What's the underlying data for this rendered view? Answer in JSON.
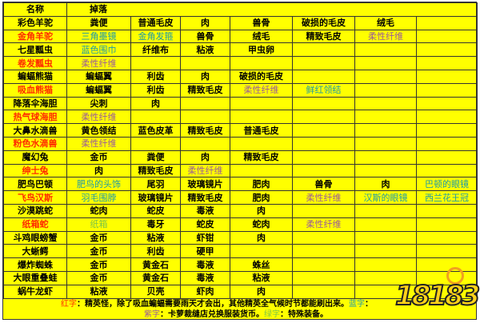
{
  "colors": {
    "background": "#ffff00",
    "red": "#ff2a00",
    "blue": "#1f9aa6",
    "purple": "#9a5a9a",
    "green": "#7cc544"
  },
  "header": {
    "name": "名称",
    "drops": "掉落"
  },
  "rows": [
    [
      {
        "t": "彩色羊驼"
      },
      {
        "t": "粪便"
      },
      {
        "t": "普通毛皮"
      },
      {
        "t": "肉"
      },
      {
        "t": "兽骨"
      },
      {
        "t": "破损的毛皮"
      },
      {
        "t": "绒毛"
      },
      {
        "t": ""
      }
    ],
    [
      {
        "t": "金角羊驼",
        "c": "red"
      },
      {
        "t": "三角墨镜",
        "c": "blue"
      },
      {
        "t": "金角发箍",
        "c": "blue"
      },
      {
        "t": "兽骨"
      },
      {
        "t": "绒毛"
      },
      {
        "t": "精致毛皮"
      },
      {
        "t": "柔性纤维",
        "c": "purple"
      },
      {
        "t": ""
      }
    ],
    [
      {
        "t": "七星瓢虫"
      },
      {
        "t": "蓝色围巾",
        "c": "blue"
      },
      {
        "t": "纤维布"
      },
      {
        "t": "粘液"
      },
      {
        "t": "甲虫卵"
      },
      {
        "t": ""
      },
      {
        "t": ""
      },
      {
        "t": ""
      }
    ],
    [
      {
        "t": "卷发瓢虫",
        "c": "red"
      },
      {
        "t": "柔性纤维",
        "c": "purple"
      },
      {
        "t": ""
      },
      {
        "t": ""
      },
      {
        "t": ""
      },
      {
        "t": ""
      },
      {
        "t": ""
      },
      {
        "t": ""
      }
    ],
    [
      {
        "t": "蝙蝠熊猫"
      },
      {
        "t": "蝙蝠翼"
      },
      {
        "t": "利齿"
      },
      {
        "t": "肉"
      },
      {
        "t": "破损的毛皮"
      },
      {
        "t": ""
      },
      {
        "t": ""
      },
      {
        "t": ""
      }
    ],
    [
      {
        "t": "吸血熊猫",
        "c": "red"
      },
      {
        "t": "蝙蝠翼"
      },
      {
        "t": "利齿"
      },
      {
        "t": "精致毛皮"
      },
      {
        "t": "柔性纤维",
        "c": "purple"
      },
      {
        "t": "鲜红领结",
        "c": "blue"
      },
      {
        "t": ""
      },
      {
        "t": ""
      }
    ],
    [
      {
        "t": "降落伞海胆"
      },
      {
        "t": "尖刺"
      },
      {
        "t": "肉"
      },
      {
        "t": ""
      },
      {
        "t": ""
      },
      {
        "t": ""
      },
      {
        "t": ""
      },
      {
        "t": ""
      }
    ],
    [
      {
        "t": "热气球海胆",
        "c": "red"
      },
      {
        "t": "柔性纤维",
        "c": "purple"
      },
      {
        "t": ""
      },
      {
        "t": ""
      },
      {
        "t": ""
      },
      {
        "t": ""
      },
      {
        "t": ""
      },
      {
        "t": ""
      }
    ],
    [
      {
        "t": "大鼻水滴兽"
      },
      {
        "t": "黄色领结"
      },
      {
        "t": "蓝色皮革"
      },
      {
        "t": "精致毛皮"
      },
      {
        "t": "普通毛皮"
      },
      {
        "t": ""
      },
      {
        "t": ""
      },
      {
        "t": ""
      }
    ],
    [
      {
        "t": "粉色水滴兽",
        "c": "red"
      },
      {
        "t": "柔性纤维",
        "c": "purple"
      },
      {
        "t": ""
      },
      {
        "t": ""
      },
      {
        "t": ""
      },
      {
        "t": ""
      },
      {
        "t": ""
      },
      {
        "t": ""
      }
    ],
    [
      {
        "t": "魔幻兔"
      },
      {
        "t": "金币"
      },
      {
        "t": "粪便"
      },
      {
        "t": "肉"
      },
      {
        "t": "精致毛皮"
      },
      {
        "t": ""
      },
      {
        "t": ""
      },
      {
        "t": ""
      }
    ],
    [
      {
        "t": "绅士兔",
        "c": "red"
      },
      {
        "t": "肉"
      },
      {
        "t": "精致毛皮"
      },
      {
        "t": "柔性纤维",
        "c": "purple"
      },
      {
        "t": ""
      },
      {
        "t": ""
      },
      {
        "t": ""
      },
      {
        "t": ""
      }
    ],
    [
      {
        "t": "肥鸟巴顿"
      },
      {
        "t": "肥鸟的头饰",
        "c": "blue"
      },
      {
        "t": "尾羽"
      },
      {
        "t": "玻璃镜片"
      },
      {
        "t": "肥肉"
      },
      {
        "t": "兽骨"
      },
      {
        "t": "肉"
      },
      {
        "t": "巴顿的眼镜",
        "c": "blue"
      }
    ],
    [
      {
        "t": "飞鸟汉斯",
        "c": "red"
      },
      {
        "t": "羽毛围脖",
        "c": "blue"
      },
      {
        "t": "玻璃镜片"
      },
      {
        "t": "精致毛皮"
      },
      {
        "t": "肥肉"
      },
      {
        "t": "柔性纤维",
        "c": "purple"
      },
      {
        "t": "汉斯的眼镜",
        "c": "blue"
      },
      {
        "t": "西兰花王冠",
        "c": "blue"
      }
    ],
    [
      {
        "t": "沙漠跳蛇"
      },
      {
        "t": "蛇肉"
      },
      {
        "t": "蛇皮"
      },
      {
        "t": "毒液"
      },
      {
        "t": "肉"
      },
      {
        "t": ""
      },
      {
        "t": ""
      },
      {
        "t": ""
      }
    ],
    [
      {
        "t": "纸箱蛇",
        "c": "red"
      },
      {
        "t": "纸箱",
        "c": "green"
      },
      {
        "t": "毒牙"
      },
      {
        "t": "蛇皮"
      },
      {
        "t": "蛇肉"
      },
      {
        "t": "柔性纤维",
        "c": "purple"
      },
      {
        "t": ""
      },
      {
        "t": ""
      }
    ],
    [
      {
        "t": "斗鸡眼螃蟹"
      },
      {
        "t": "金币"
      },
      {
        "t": "粘液"
      },
      {
        "t": "虾钳"
      },
      {
        "t": "肉"
      },
      {
        "t": ""
      },
      {
        "t": ""
      },
      {
        "t": ""
      }
    ],
    [
      {
        "t": "大蜥鳄"
      },
      {
        "t": "金币"
      },
      {
        "t": "利齿"
      },
      {
        "t": "硬甲"
      },
      {
        "t": ""
      },
      {
        "t": ""
      },
      {
        "t": ""
      },
      {
        "t": ""
      }
    ],
    [
      {
        "t": "爆炸蜘蛛"
      },
      {
        "t": "金币"
      },
      {
        "t": "黄金石"
      },
      {
        "t": "毒液"
      },
      {
        "t": "蛛丝"
      },
      {
        "t": ""
      },
      {
        "t": ""
      },
      {
        "t": ""
      }
    ],
    [
      {
        "t": "大眼重叠蛙"
      },
      {
        "t": "金币"
      },
      {
        "t": "黄金石"
      },
      {
        "t": "毒液"
      },
      {
        "t": "粘液"
      },
      {
        "t": ""
      },
      {
        "t": ""
      },
      {
        "t": ""
      }
    ],
    [
      {
        "t": "蜗牛龙虾"
      },
      {
        "t": "粘液"
      },
      {
        "t": "贝壳"
      },
      {
        "t": "虾肉"
      },
      {
        "t": "肉"
      },
      {
        "t": ""
      },
      {
        "t": ""
      },
      {
        "t": ""
      }
    ]
  ],
  "footer": {
    "red_key": "红字",
    "red_text": "：精英怪，除了吸血蝙蝠需要雨天才会出，其他精英全气候时节都能刷出来。",
    "blue_key": "蓝字",
    "blue_text": "：",
    "purple_key": "紫字",
    "purple_text": "：卡萝裁缝店兑换服装货币。",
    "green_key": "绿字",
    "green_text": "：特殊装备。"
  },
  "logo": {
    "text": "18183"
  }
}
